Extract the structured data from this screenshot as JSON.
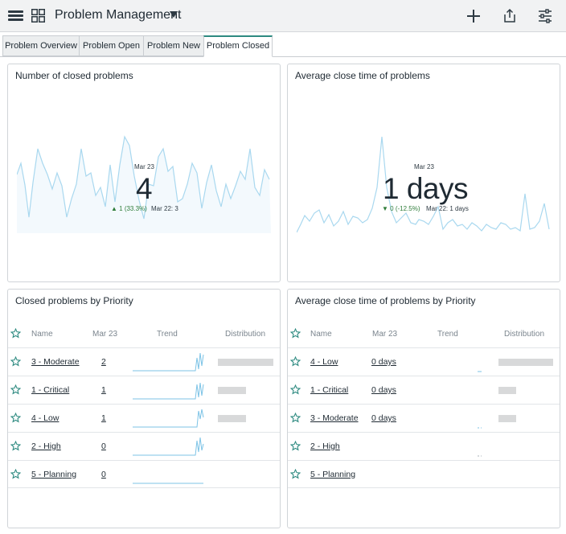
{
  "header": {
    "title": "Problem Management"
  },
  "tabs": [
    {
      "label": "Problem Overview",
      "active": false
    },
    {
      "label": "Problem Open",
      "active": false
    },
    {
      "label": "Problem New",
      "active": false
    },
    {
      "label": "Problem Closed",
      "active": true
    }
  ],
  "widgets": {
    "closed_count": {
      "title": "Number of closed problems",
      "date": "Mar 23",
      "value": "4",
      "delta": "▲ 1 (33.3%)",
      "previous": "Mar 22: 3"
    },
    "avg_close": {
      "title": "Average close time of problems",
      "date": "Mar 23",
      "value": "1 days",
      "delta": "▼ 0 (-12.5%)",
      "previous": "Mar 22: 1 days"
    },
    "closed_by_priority": {
      "title": "Closed problems by Priority",
      "columns": {
        "name": "Name",
        "date": "Mar 23",
        "trend": "Trend",
        "distribution": "Distribution"
      },
      "rows": [
        {
          "name": "3 - Moderate",
          "value": "2",
          "distribution": 1.0
        },
        {
          "name": "1 - Critical",
          "value": "1",
          "distribution": 0.5
        },
        {
          "name": "4 - Low",
          "value": "1",
          "distribution": 0.5
        },
        {
          "name": "2 - High",
          "value": "0",
          "distribution": 0
        },
        {
          "name": "5 - Planning",
          "value": "0",
          "distribution": 0
        }
      ]
    },
    "avg_by_priority": {
      "title": "Average close time of problems by Priority",
      "columns": {
        "name": "Name",
        "date": "Mar 23",
        "trend": "Trend",
        "distribution": "Distribution"
      },
      "rows": [
        {
          "name": "4 - Low",
          "value": "0 days",
          "distribution": 1.0
        },
        {
          "name": "1 - Critical",
          "value": "0 days",
          "distribution": 0.32
        },
        {
          "name": "3 - Moderate",
          "value": "0 days",
          "distribution": 0.32
        },
        {
          "name": "2 - High",
          "value": "",
          "distribution": 0
        },
        {
          "name": "5 - Planning",
          "value": "",
          "distribution": 0
        }
      ]
    }
  },
  "colors": {
    "accent": "#2d8a80",
    "sparkline": "#a9d8ef",
    "trend_line": "#7cc3e6",
    "delta_up": "#2f7d3a",
    "distribution_bar": "#d8d9da"
  }
}
